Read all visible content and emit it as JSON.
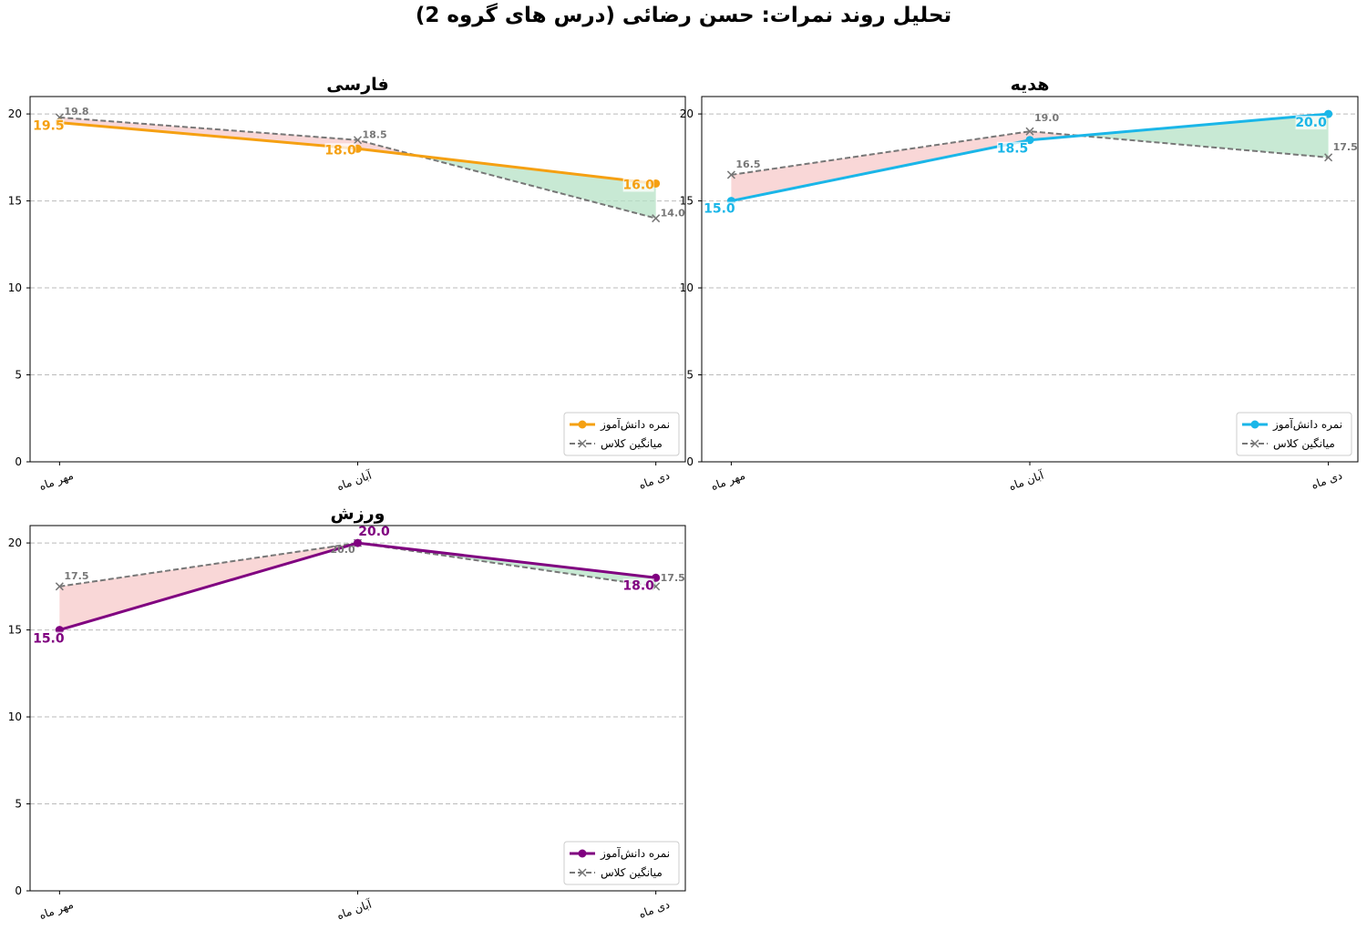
{
  "title": "تحلیل روند نمرات: حسن رضائی (درس های گروه 2)",
  "legend": {
    "student": "نمره دانش‌آموز",
    "class_avg": "میانگین کلاس"
  },
  "colors": {
    "avg": "#777777",
    "above": "#b6e2c6",
    "below": "#f7c9c9",
    "grid": "#bbbbbb"
  },
  "chart_data": [
    {
      "type": "line",
      "title": "فارسی",
      "categories": [
        "مهر ماه",
        "آبان ماه",
        "دی ماه"
      ],
      "series": [
        {
          "name": "نمره دانش‌آموز",
          "values": [
            19.5,
            18.0,
            16.0
          ],
          "color": "#f5a012"
        },
        {
          "name": "میانگین کلاس",
          "values": [
            19.8,
            18.5,
            14.0
          ],
          "color": "#777777"
        }
      ],
      "ylim": [
        0,
        21
      ],
      "yticks": [
        0,
        5,
        10,
        15,
        20
      ],
      "grid": true,
      "legend_position": "lower-right",
      "student_labels": [
        "19.5",
        "18.0",
        "16.0"
      ],
      "avg_labels": [
        "19.8",
        "18.5",
        "14.0"
      ]
    },
    {
      "type": "line",
      "title": "هدیه",
      "categories": [
        "مهر ماه",
        "آبان ماه",
        "دی ماه"
      ],
      "series": [
        {
          "name": "نمره دانش‌آموز",
          "values": [
            15.0,
            18.5,
            20.0
          ],
          "color": "#1ab6e8"
        },
        {
          "name": "میانگین کلاس",
          "values": [
            16.5,
            19.0,
            17.5
          ],
          "color": "#777777"
        }
      ],
      "ylim": [
        0,
        21
      ],
      "yticks": [
        0,
        5,
        10,
        15,
        20
      ],
      "grid": true,
      "legend_position": "lower-right",
      "student_labels": [
        "15.0",
        "18.5",
        "20.0"
      ],
      "avg_labels": [
        "16.5",
        "19.0",
        "17.5"
      ]
    },
    {
      "type": "line",
      "title": "ورزش",
      "categories": [
        "مهر ماه",
        "آبان ماه",
        "دی ماه"
      ],
      "series": [
        {
          "name": "نمره دانش‌آموز",
          "values": [
            15.0,
            20.0,
            18.0
          ],
          "color": "#800080"
        },
        {
          "name": "میانگین کلاس",
          "values": [
            17.5,
            20.0,
            17.5
          ],
          "color": "#777777"
        }
      ],
      "ylim": [
        0,
        21
      ],
      "yticks": [
        0,
        5,
        10,
        15,
        20
      ],
      "grid": true,
      "legend_position": "lower-right",
      "student_labels": [
        "15.0",
        "20.0",
        "18.0"
      ],
      "avg_labels": [
        "17.5",
        "20.0",
        "17.5"
      ]
    }
  ]
}
